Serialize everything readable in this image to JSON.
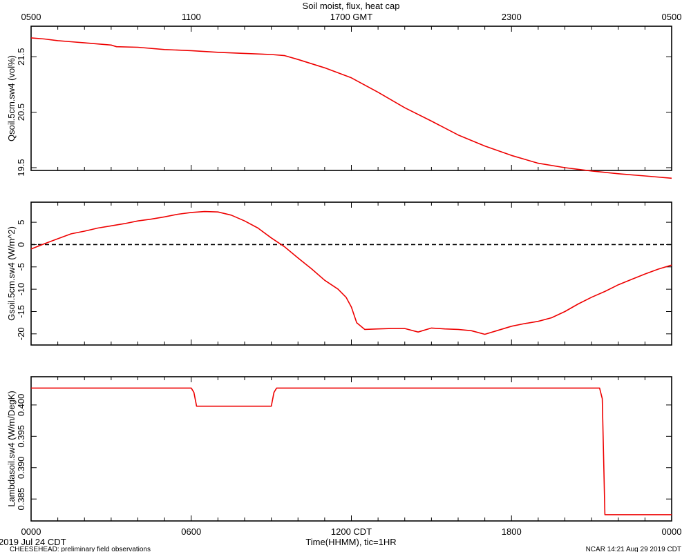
{
  "title": "Soil moist, flux, heat cap",
  "top_axis_ticks": [
    "0500",
    "1100",
    "1700 GMT",
    "2300",
    "0500"
  ],
  "bottom_axis_ticks": [
    "0000",
    "0600",
    "1200 CDT",
    "1800",
    "0000"
  ],
  "xlabel": "Time(HHMM), tic=1HR",
  "date_label": "2019 Jul 24 CDT",
  "footer_left": "CHEESEHEAD: preliminary field observations",
  "footer_right": "NCAR 14:21 Aug 29 2019 CDT",
  "colors": {
    "series": "#ee0000",
    "axis": "#000000",
    "zero_line": "#000000"
  },
  "chart_data": [
    {
      "type": "line",
      "ylabel": "Qsoil.5cm.sw4 (vol%)",
      "ylim": [
        19.45,
        22.05
      ],
      "yticks": [
        19.5,
        20.5,
        21.5
      ],
      "ytick_labels": [
        "19.5",
        "20.5",
        "21.5"
      ],
      "xlim": [
        0,
        24
      ],
      "x_unit": "hours CDT",
      "series": [
        {
          "x": [
            0,
            0.5,
            1,
            1.5,
            2,
            2.5,
            3,
            3.2,
            4,
            5,
            6,
            7,
            8,
            9,
            9.5,
            10,
            11,
            12,
            13,
            14,
            15,
            16,
            17,
            18,
            19,
            20,
            21,
            22,
            23,
            24
          ],
          "values": [
            21.84,
            21.82,
            21.79,
            21.77,
            21.75,
            21.73,
            21.71,
            21.68,
            21.67,
            21.63,
            21.61,
            21.58,
            21.56,
            21.54,
            21.52,
            21.45,
            21.3,
            21.12,
            20.86,
            20.58,
            20.34,
            20.09,
            19.89,
            19.72,
            19.58,
            19.5,
            19.44,
            19.39,
            19.35,
            19.31
          ]
        }
      ]
    },
    {
      "type": "line",
      "ylabel": "Gsoil.5cm.sw4 (W/m^2)",
      "ylim": [
        -22.5,
        9.5
      ],
      "yticks": [
        -20,
        -15,
        -10,
        -5,
        0,
        5
      ],
      "ytick_labels": [
        "-20",
        "-15",
        "-10",
        "-5",
        "0",
        "5"
      ],
      "zero_line": true,
      "xlim": [
        0,
        24
      ],
      "x_unit": "hours CDT",
      "series": [
        {
          "x": [
            0,
            0.5,
            1,
            1.5,
            2,
            2.5,
            3,
            3.5,
            4,
            4.5,
            5,
            5.5,
            6,
            6.5,
            7,
            7.5,
            8,
            8.5,
            9,
            9.5,
            10,
            10.5,
            11,
            11.5,
            11.8,
            12,
            12.2,
            12.5,
            13,
            13.5,
            14,
            14.5,
            15,
            15.5,
            16,
            16.5,
            17,
            17.5,
            18,
            18.5,
            19,
            19.5,
            20,
            20.5,
            21,
            21.5,
            22,
            22.5,
            23,
            23.5,
            24
          ],
          "values": [
            -1.0,
            0.2,
            1.3,
            2.4,
            3.0,
            3.7,
            4.2,
            4.7,
            5.3,
            5.7,
            6.2,
            6.8,
            7.2,
            7.4,
            7.3,
            6.6,
            5.3,
            3.7,
            1.5,
            -0.5,
            -3.0,
            -5.4,
            -8.0,
            -10.0,
            -11.8,
            -14.0,
            -17.5,
            -19.0,
            -18.9,
            -18.8,
            -18.8,
            -19.6,
            -18.7,
            -18.9,
            -19.0,
            -19.3,
            -20.1,
            -19.2,
            -18.3,
            -17.7,
            -17.2,
            -16.4,
            -15.0,
            -13.3,
            -11.8,
            -10.5,
            -9.0,
            -7.8,
            -6.6,
            -5.5,
            -4.6
          ]
        }
      ]
    },
    {
      "type": "line",
      "ylabel": "Lambdasoil.sw4 (W/m/DegK)",
      "ylim": [
        0.3815,
        0.4045
      ],
      "yticks": [
        0.385,
        0.39,
        0.395,
        0.4
      ],
      "ytick_labels": [
        "0.385",
        "0.390",
        "0.395",
        "0.400"
      ],
      "xlim": [
        0,
        24
      ],
      "x_unit": "hours CDT",
      "series": [
        {
          "x": [
            0,
            6.0,
            6.1,
            6.2,
            9.0,
            9.1,
            9.2,
            21.3,
            21.4,
            21.5,
            24
          ],
          "values": [
            0.4027,
            0.4027,
            0.402,
            0.3998,
            0.3998,
            0.402,
            0.4027,
            0.4027,
            0.401,
            0.3825,
            0.3825
          ]
        }
      ]
    }
  ]
}
